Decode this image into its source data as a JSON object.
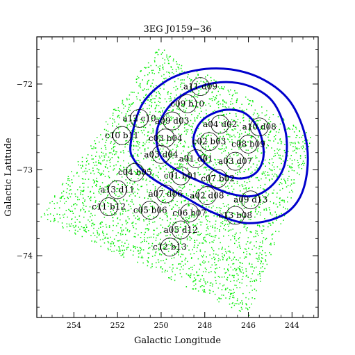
{
  "chart_data": {
    "type": "scatter",
    "title": "3EG J0159−36",
    "xlabel": "Galactic Longitude",
    "ylabel": "Galactic Latitude",
    "xlim": [
      255.7,
      242.8
    ],
    "ylim": [
      -74.72,
      -71.45
    ],
    "x_axis_reversed": true,
    "xticks": [
      254,
      252,
      250,
      248,
      246,
      244
    ],
    "yticks": [
      -72,
      -73,
      -74
    ],
    "x_tick_labels": [
      "254",
      "252",
      "250",
      "248",
      "246",
      "244"
    ],
    "y_tick_labels": [
      "−72",
      "−73",
      "−74"
    ],
    "grid": false,
    "colors": {
      "points": "#00ee00",
      "contours": "#0000cc",
      "circles": "#000000",
      "frame": "#000000"
    },
    "background_points": {
      "color": "#00ee00",
      "description_region": [
        [
          250.2,
          -71.55
        ],
        [
          243.0,
          -72.6
        ],
        [
          246.0,
          -74.7
        ],
        [
          255.6,
          -73.55
        ]
      ]
    },
    "contours": [
      {
        "name": "",
        "points": [
          [
            251.4,
            -72.7
          ],
          [
            250.9,
            -72.25
          ],
          [
            249.8,
            -71.97
          ],
          [
            248.4,
            -71.84
          ],
          [
            246.8,
            -71.83
          ],
          [
            245.3,
            -71.95
          ],
          [
            244.1,
            -72.2
          ],
          [
            243.4,
            -72.6
          ],
          [
            243.3,
            -73.0
          ],
          [
            243.7,
            -73.35
          ],
          [
            244.6,
            -73.55
          ],
          [
            246.1,
            -73.62
          ],
          [
            247.6,
            -73.5
          ],
          [
            248.9,
            -73.32
          ],
          [
            250.4,
            -73.1
          ],
          [
            251.2,
            -72.9
          ],
          [
            251.4,
            -72.7
          ]
        ]
      },
      {
        "name": "",
        "points": [
          [
            250.2,
            -72.55
          ],
          [
            249.6,
            -72.25
          ],
          [
            248.6,
            -72.07
          ],
          [
            247.3,
            -71.98
          ],
          [
            246.0,
            -72.02
          ],
          [
            244.9,
            -72.2
          ],
          [
            244.3,
            -72.55
          ],
          [
            244.3,
            -72.9
          ],
          [
            244.8,
            -73.15
          ],
          [
            245.7,
            -73.3
          ],
          [
            246.8,
            -73.28
          ],
          [
            247.9,
            -73.17
          ],
          [
            249.1,
            -73.03
          ],
          [
            250.0,
            -72.85
          ],
          [
            250.2,
            -72.55
          ]
        ]
      },
      {
        "name": "",
        "points": [
          [
            248.4,
            -72.53
          ],
          [
            247.9,
            -72.38
          ],
          [
            247.0,
            -72.3
          ],
          [
            246.1,
            -72.35
          ],
          [
            245.5,
            -72.55
          ],
          [
            245.3,
            -72.82
          ],
          [
            245.6,
            -73.02
          ],
          [
            246.3,
            -73.1
          ],
          [
            247.2,
            -73.05
          ],
          [
            248.0,
            -72.92
          ],
          [
            248.5,
            -72.72
          ],
          [
            248.4,
            -72.53
          ]
        ]
      }
    ],
    "circles": [
      {
        "label": "a11 d09",
        "x": 248.2,
        "y": -72.03
      },
      {
        "label": "c09 b10",
        "x": 248.8,
        "y": -72.23
      },
      {
        "label": "a12 c10",
        "x": 251.0,
        "y": -72.4
      },
      {
        "label": "a09 d03",
        "x": 249.5,
        "y": -72.43
      },
      {
        "label": "a04 d02",
        "x": 247.3,
        "y": -72.47
      },
      {
        "label": "a10 d08",
        "x": 245.5,
        "y": -72.5
      },
      {
        "label": "c10 b11",
        "x": 251.8,
        "y": -72.6
      },
      {
        "label": "c03 b04",
        "x": 249.8,
        "y": -72.63
      },
      {
        "label": "c02 b03",
        "x": 247.8,
        "y": -72.67
      },
      {
        "label": "c08 b09",
        "x": 246.0,
        "y": -72.7
      },
      {
        "label": "a03 d04",
        "x": 250.0,
        "y": -72.82
      },
      {
        "label": "a01 d01",
        "x": 248.4,
        "y": -72.87
      },
      {
        "label": "a03 d07",
        "x": 246.6,
        "y": -72.9
      },
      {
        "label": "c04 b05",
        "x": 251.2,
        "y": -73.03
      },
      {
        "label": "c01 b01",
        "x": 249.1,
        "y": -73.07
      },
      {
        "label": "c07 b02",
        "x": 247.4,
        "y": -73.1
      },
      {
        "label": "a13 d11",
        "x": 252.0,
        "y": -73.23
      },
      {
        "label": "a07 d06",
        "x": 249.8,
        "y": -73.28
      },
      {
        "label": "a02 d08",
        "x": 247.9,
        "y": -73.3
      },
      {
        "label": "a09 d13",
        "x": 245.9,
        "y": -73.35
      },
      {
        "label": "c11 b12",
        "x": 252.4,
        "y": -73.43
      },
      {
        "label": "c05 b06",
        "x": 250.5,
        "y": -73.47
      },
      {
        "label": "c06 b07",
        "x": 248.7,
        "y": -73.5
      },
      {
        "label": "c13 b08",
        "x": 246.6,
        "y": -73.53
      },
      {
        "label": "a05 d12",
        "x": 249.1,
        "y": -73.7
      },
      {
        "label": "c12 b13",
        "x": 249.6,
        "y": -73.9
      }
    ]
  }
}
